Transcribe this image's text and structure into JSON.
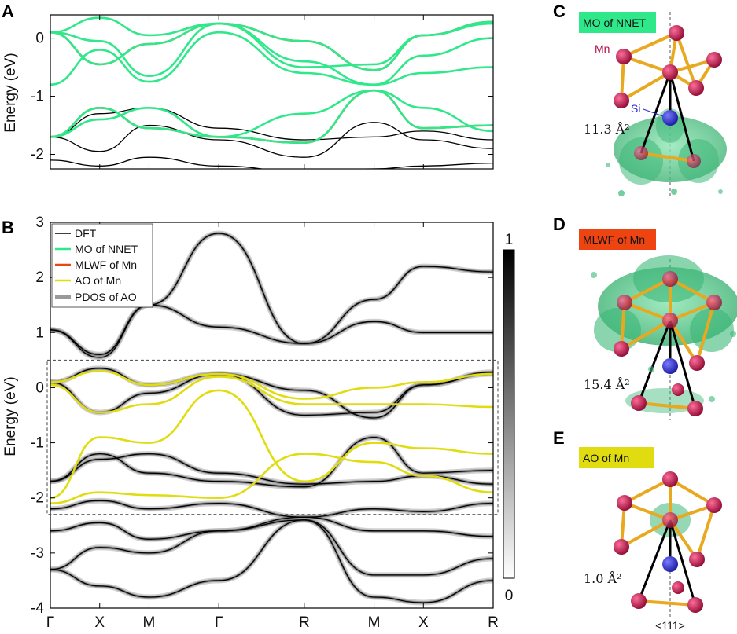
{
  "panels": {
    "a": {
      "letter": "A"
    },
    "b": {
      "letter": "B"
    },
    "c": {
      "letter": "C",
      "tag": "MO of NNET",
      "area": "11.3 Å²",
      "atom_mn": "Mn",
      "atom_si": "Si"
    },
    "d": {
      "letter": "D",
      "tag": "MLWF of Mn",
      "area": "15.4 Å²"
    },
    "e": {
      "letter": "E",
      "tag": "AO of Mn",
      "area": "1.0 Å²",
      "axis": "<111>"
    }
  },
  "colors": {
    "dft": "#000000",
    "mo": "#2ee88a",
    "mlwf": "#ee4411",
    "ao": "#e0dc10",
    "pdos": "#888888",
    "cloud": "#3cb878",
    "mn": "#b01040",
    "si": "#2a2ad0",
    "bond": "#e8a820"
  },
  "colorbar": {
    "max_label": "1",
    "min_label": "0"
  },
  "chart_data": [
    {
      "type": "line",
      "title": "",
      "ylabel": "Energy (eV)",
      "ylim": [
        -2.25,
        0.4
      ],
      "yticks": [
        "0",
        "-1",
        "-2"
      ],
      "k_points": [
        "Γ",
        "X",
        "M",
        "Γ",
        "R",
        "M",
        "X",
        "R"
      ],
      "k_positions": [
        0,
        0.5,
        1.0,
        1.707,
        2.573,
        3.28,
        3.78,
        4.487
      ],
      "series": [
        {
          "name": "DFT",
          "color": "#000000",
          "bands": [
            [
              -1.7,
              -1.95,
              -1.5,
              -1.75,
              -2.05,
              -1.45,
              -1.75,
              -1.9,
              -1.6
            ],
            [
              -1.7,
              -1.3,
              -1.2,
              -1.55,
              -1.75,
              -1.7,
              -1.6,
              -1.75,
              -1.65
            ],
            [
              -2.1,
              -2.2,
              -2.05,
              -2.2,
              -2.3,
              -2.25,
              -2.2,
              -2.15,
              -2.1
            ]
          ]
        },
        {
          "name": "MLWF of Mn",
          "color": "#ee4411",
          "bands": [
            [
              0.1,
              -0.45,
              -0.1,
              0.25,
              -0.05,
              -0.55,
              0.05,
              0.28,
              -0.3
            ],
            [
              -1.7,
              -1.2,
              -1.55,
              -1.7,
              -1.8,
              -0.9,
              -1.55,
              -1.5,
              -0.6
            ]
          ]
        },
        {
          "name": "MO of NNET",
          "color": "#2ee88a",
          "bands": [
            [
              0.1,
              0.35,
              0.05,
              0.25,
              -0.5,
              -0.45,
              0.05,
              0.25,
              -0.2
            ],
            [
              0.1,
              -0.45,
              -0.1,
              0.25,
              -0.05,
              -0.55,
              0.05,
              0.28,
              -0.3
            ],
            [
              0.1,
              -0.05,
              -0.65,
              0.25,
              -0.4,
              -0.8,
              -0.3,
              0.0,
              -0.3
            ],
            [
              -0.8,
              -0.2,
              -0.75,
              0.1,
              -0.6,
              -0.8,
              -0.6,
              -0.5,
              -0.6
            ],
            [
              -1.7,
              -1.2,
              -1.55,
              -1.7,
              -1.8,
              -0.9,
              -1.55,
              -1.5,
              -0.6
            ],
            [
              -1.7,
              -1.4,
              -1.2,
              -1.7,
              -1.3,
              -0.9,
              -1.2,
              -1.6,
              -0.6
            ]
          ]
        }
      ]
    },
    {
      "type": "line",
      "title": "",
      "ylabel": "Energy (eV)",
      "ylim": [
        -4,
        3
      ],
      "yticks": [
        "3",
        "2",
        "1",
        "0",
        "-1",
        "-2",
        "-3",
        "-4"
      ],
      "k_points": [
        "Γ",
        "X",
        "M",
        "Γ",
        "R",
        "M",
        "X",
        "R"
      ],
      "k_positions": [
        0,
        0.5,
        1.0,
        1.707,
        2.573,
        3.28,
        3.78,
        4.487
      ],
      "legend": [
        "DFT",
        "MO of NNET",
        "MLWF of Mn",
        "AO of Mn",
        "PDOS of AO"
      ],
      "legend_position": "top-left",
      "window_eV": [
        -2.3,
        0.5
      ],
      "colorbar_range": [
        0,
        1
      ],
      "series": [
        {
          "name": "DFT",
          "color": "#000000",
          "pdos_width": [
            6,
            1,
            6,
            1,
            6,
            1,
            6,
            1,
            4
          ],
          "bands": [
            [
              1.05,
              0.55,
              1.5,
              2.8,
              0.8,
              1.6,
              2.2,
              2.1,
              0.8
            ],
            [
              1.05,
              0.6,
              1.5,
              1.1,
              0.8,
              1.2,
              1.0,
              1.0,
              0.8
            ],
            [
              0.1,
              0.35,
              0.05,
              0.25,
              -0.5,
              -0.45,
              0.05,
              0.25,
              -0.2
            ],
            [
              0.1,
              -0.45,
              -0.1,
              0.25,
              -0.05,
              -0.55,
              0.05,
              0.28,
              -0.3
            ],
            [
              -1.7,
              -1.2,
              -1.55,
              -1.7,
              -1.8,
              -0.9,
              -1.55,
              -1.5,
              -0.6
            ],
            [
              -1.7,
              -1.3,
              -1.2,
              -1.55,
              -1.75,
              -1.7,
              -1.6,
              -1.75,
              -1.65
            ],
            [
              -2.2,
              -2.05,
              -2.2,
              -2.1,
              -2.35,
              -2.2,
              -2.25,
              -2.1,
              -2.3
            ],
            [
              -2.6,
              -2.45,
              -2.75,
              -2.6,
              -2.35,
              -2.6,
              -2.6,
              -2.7,
              -2.35
            ],
            [
              -3.3,
              -2.9,
              -3.0,
              -2.6,
              -2.4,
              -3.4,
              -3.4,
              -3.1,
              -2.35
            ],
            [
              -3.3,
              -3.6,
              -3.8,
              -3.5,
              -2.4,
              -3.8,
              -3.9,
              -3.5,
              -2.35
            ]
          ]
        },
        {
          "name": "AO of Mn",
          "color": "#e0dc10",
          "bands": [
            [
              0.1,
              0.3,
              0.05,
              0.25,
              -0.2,
              0.0,
              0.1,
              0.25,
              -0.2
            ],
            [
              0.05,
              -0.45,
              -0.3,
              0.2,
              -0.3,
              -0.3,
              -0.3,
              -0.35,
              -0.6
            ],
            [
              -2.0,
              -0.9,
              -1.0,
              -0.05,
              -1.7,
              -1.0,
              -1.1,
              -1.2,
              -1.4
            ],
            [
              -2.1,
              -1.9,
              -1.95,
              -2.0,
              -1.2,
              -1.35,
              -1.6,
              -1.9,
              -1.4
            ]
          ]
        }
      ]
    }
  ]
}
